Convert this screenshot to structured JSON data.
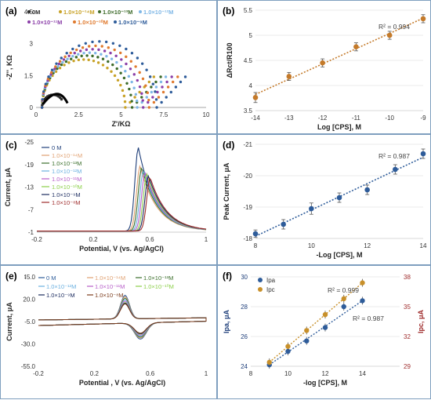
{
  "chart_data": [
    {
      "panel": "(a)",
      "type": "scatter",
      "xlabel": "Z'/KΩ",
      "ylabel": "-Z'', KΩ",
      "xlim": [
        0,
        10
      ],
      "ylim": [
        0,
        4.5
      ],
      "xticks": [
        "0",
        "2.5",
        "5",
        "7.5",
        "10"
      ],
      "yticks": [
        "0",
        "1.5",
        "3",
        "4.5"
      ],
      "legend": [
        "0M",
        "1.0×10⁻¹⁴M",
        "1.0×10⁻¹³M",
        "1.0×10⁻¹²M",
        "1.0×10⁻¹¹M",
        "1.0×10⁻¹⁰M",
        "1.0×10⁻⁹M"
      ],
      "series": [
        {
          "name": "0M",
          "color": "#2b2b2b",
          "rct": 1.3
        },
        {
          "name": "1.0×10⁻¹⁴M",
          "color": "#c8a227",
          "rct": 4.9
        },
        {
          "name": "1.0×10⁻¹³M",
          "color": "#3d6b2a",
          "rct": 5.3
        },
        {
          "name": "1.0×10⁻¹²M",
          "color": "#7fb7e6",
          "rct": 5.6
        },
        {
          "name": "1.0×10⁻¹¹M",
          "color": "#8b3fa8",
          "rct": 5.95
        },
        {
          "name": "1.0×10⁻¹⁰M",
          "color": "#e07a2e",
          "rct": 6.3
        },
        {
          "name": "1.0×10⁻⁹M",
          "color": "#2e5c9a",
          "rct": 6.75
        }
      ]
    },
    {
      "panel": "(b)",
      "type": "scatter",
      "xlabel": "Log [CPS], M",
      "ylabel": "ΔRct/R100",
      "xlim": [
        -14,
        -9
      ],
      "ylim": [
        3.5,
        5.5
      ],
      "xticks": [
        "-14",
        "-13",
        "-12",
        "-11",
        "-10",
        "-9"
      ],
      "yticks": [
        "3.5",
        "4",
        "4.5",
        "5",
        "5.5"
      ],
      "annotation": "R² = 0.994",
      "color": "#c47a2a",
      "x": [
        -14,
        -13,
        -12,
        -11,
        -10,
        -9
      ],
      "y": [
        3.76,
        4.18,
        4.45,
        4.77,
        5.0,
        5.33
      ],
      "err": [
        0.1,
        0.08,
        0.08,
        0.08,
        0.08,
        0.08
      ]
    },
    {
      "panel": "(c)",
      "type": "line",
      "xlabel": "Potential, V (vs. Ag/AgCl)",
      "ylabel": "Current, μA",
      "xlim": [
        -0.2,
        1
      ],
      "ylim": [
        -1,
        -25
      ],
      "xticks": [
        "-0.2",
        "0.2",
        "0.6",
        "1"
      ],
      "yticks": [
        "-25",
        "-19",
        "-13",
        "-7",
        "-1"
      ],
      "series": [
        {
          "name": "0 M",
          "color": "#1f3f7a",
          "peak": -23.5
        },
        {
          "name": "1.0×10⁻¹⁴M",
          "color": "#e0a070",
          "peak": -18.6
        },
        {
          "name": "1.0×10⁻¹³M",
          "color": "#3a6e2a",
          "peak": -18.2
        },
        {
          "name": "1.0×10⁻¹²M",
          "color": "#6ab0e0",
          "peak": -17.5
        },
        {
          "name": "1.0×10⁻¹¹M",
          "color": "#b65cc8",
          "peak": -17.0
        },
        {
          "name": "1.0×10⁻¹⁰M",
          "color": "#8ccf4a",
          "peak": -16.5
        },
        {
          "name": "1.0×10⁻⁹M",
          "color": "#1a2a5e",
          "peak": -16.0
        },
        {
          "name": "1.0×10⁻⁸M",
          "color": "#9e2a2a",
          "peak": -15.5
        }
      ]
    },
    {
      "panel": "(d)",
      "type": "scatter",
      "xlabel": "-Log [CPS], M",
      "ylabel": "Peak Current, μA",
      "xlim": [
        8,
        14
      ],
      "ylim": [
        -18,
        -21
      ],
      "xticks": [
        "8",
        "10",
        "12",
        "14"
      ],
      "yticks": [
        "-18",
        "-19",
        "-20",
        "-21"
      ],
      "annotation": "R² = 0.987",
      "color": "#2e5c9a",
      "x": [
        8,
        9,
        10,
        11,
        12,
        13,
        14
      ],
      "y": [
        -18.15,
        -18.45,
        -18.95,
        -19.3,
        -19.55,
        -20.2,
        -20.7
      ],
      "err": [
        0.12,
        0.15,
        0.18,
        0.15,
        0.15,
        0.15,
        0.15
      ]
    },
    {
      "panel": "(e)",
      "type": "line",
      "xlabel": "Potential , V (vs. Ag/AgCl)",
      "ylabel": "Current, μA",
      "xlim": [
        -0.2,
        1
      ],
      "ylim": [
        -55,
        45
      ],
      "xticks": [
        "-0.2",
        "0.2",
        "0.6",
        "1"
      ],
      "yticks": [
        "-55.0",
        "-30.0",
        "-5.0",
        "20.0",
        "45.0"
      ],
      "series": [
        {
          "name": "0 M",
          "color": "#2e5c9a",
          "ox": -33,
          "red": 33
        },
        {
          "name": "1.0×10⁻¹⁴M",
          "color": "#e0a070",
          "ox": -31,
          "red": 31
        },
        {
          "name": "1.0×10⁻¹³M",
          "color": "#3a6e2a",
          "ox": -29,
          "red": 29
        },
        {
          "name": "1.0×10⁻¹²M",
          "color": "#6ab0e0",
          "ox": -27,
          "red": 27
        },
        {
          "name": "1.0×10⁻¹¹M",
          "color": "#b65cc8",
          "ox": -25,
          "red": 25
        },
        {
          "name": "1.0×10⁻¹⁰M",
          "color": "#8ccf4a",
          "ox": -23,
          "red": 23
        },
        {
          "name": "1.0×10⁻⁹M",
          "color": "#1a2a5e",
          "ox": -22,
          "red": 22
        },
        {
          "name": "1.0×10⁻⁸M",
          "color": "#7a3a1a",
          "ox": -21,
          "red": 21
        }
      ]
    },
    {
      "panel": "(f)",
      "type": "scatter",
      "xlabel": "-log [CPS], M",
      "ylabel": "Ipa, μA",
      "ylabel_right": "Ipc, μA",
      "xlim": [
        8,
        16
      ],
      "ylim": [
        24,
        30
      ],
      "ylim_right": [
        29,
        38
      ],
      "xticks": [
        "8",
        "10",
        "12",
        "14"
      ],
      "yticks": [
        "24",
        "26",
        "28",
        "30"
      ],
      "yticks_right": [
        "29",
        "32",
        "35",
        "38"
      ],
      "series": [
        {
          "name": "Ipa",
          "color": "#2e5c9a",
          "annotation": "R² = 0.987",
          "x": [
            9,
            10,
            11,
            12,
            13,
            14
          ],
          "y": [
            24.1,
            25.0,
            25.7,
            26.6,
            28.0,
            28.4
          ]
        },
        {
          "name": "Ipc",
          "color": "#c8902a",
          "annotation": "R² = 0.999",
          "x": [
            9,
            10,
            11,
            12,
            13,
            14
          ],
          "y": [
            29.4,
            31.0,
            32.6,
            34.2,
            35.8,
            37.4
          ],
          "axis": "right"
        }
      ]
    }
  ]
}
